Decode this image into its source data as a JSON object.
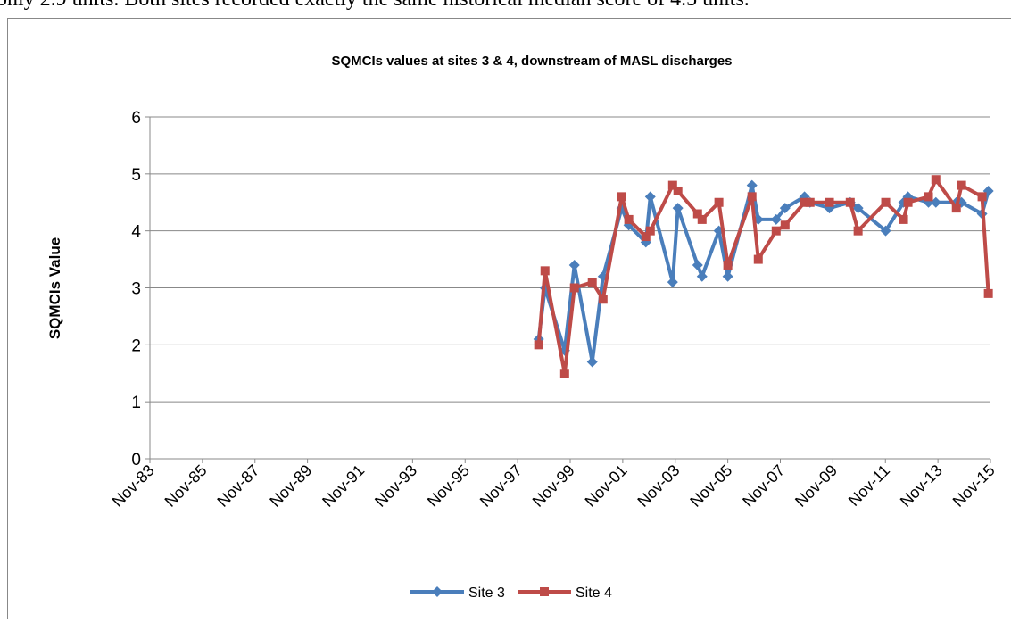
{
  "text_above": "only 2.9 units. Both sites recorded exactly the same historical median score of 4.5 units.",
  "chart_data": {
    "type": "line",
    "title": "SQMCIs values at sites 3 & 4, downstream of MASL discharges",
    "y_label": "SQMCIs Value",
    "x": [
      1998.63,
      1998.87,
      1999.62,
      1999.99,
      2000.67,
      2001.08,
      2001.79,
      2002.06,
      2002.71,
      2002.88,
      2003.73,
      2003.93,
      2004.68,
      2004.85,
      2005.49,
      2005.83,
      2006.75,
      2006.99,
      2007.67,
      2008.01,
      2008.75,
      2008.96,
      2009.7,
      2010.49,
      2010.79,
      2011.84,
      2012.52,
      2012.69,
      2013.47,
      2013.75,
      2014.53,
      2014.73,
      2015.51,
      2015.75
    ],
    "series": [
      {
        "name": "Site 3",
        "color": "#4a7ebb",
        "marker": "diamond",
        "values": [
          2.1,
          3.0,
          1.9,
          3.4,
          1.7,
          3.2,
          4.4,
          4.1,
          3.8,
          4.6,
          3.1,
          4.4,
          3.4,
          3.2,
          4.0,
          3.2,
          4.8,
          4.2,
          4.2,
          4.4,
          4.6,
          4.5,
          4.4,
          4.5,
          4.4,
          4.0,
          4.5,
          4.6,
          4.5,
          4.5,
          4.5,
          4.5,
          4.3,
          4.7
        ]
      },
      {
        "name": "Site 4",
        "color": "#be4b48",
        "marker": "square",
        "values": [
          2.0,
          3.3,
          1.5,
          3.0,
          3.1,
          2.8,
          4.6,
          4.2,
          3.9,
          4.0,
          4.8,
          4.7,
          4.3,
          4.2,
          4.5,
          3.4,
          4.6,
          3.5,
          4.0,
          4.1,
          4.5,
          4.5,
          4.5,
          4.5,
          4.0,
          4.5,
          4.2,
          4.5,
          4.6,
          4.9,
          4.4,
          4.8,
          4.6,
          2.9
        ]
      }
    ],
    "xlim": [
      1983.83,
      2015.83
    ],
    "xticks": [
      {
        "value": 1983.83,
        "label": "Nov-83"
      },
      {
        "value": 1985.83,
        "label": "Nov-85"
      },
      {
        "value": 1987.83,
        "label": "Nov-87"
      },
      {
        "value": 1989.83,
        "label": "Nov-89"
      },
      {
        "value": 1991.83,
        "label": "Nov-91"
      },
      {
        "value": 1993.83,
        "label": "Nov-93"
      },
      {
        "value": 1995.83,
        "label": "Nov-95"
      },
      {
        "value": 1997.83,
        "label": "Nov-97"
      },
      {
        "value": 1999.83,
        "label": "Nov-99"
      },
      {
        "value": 2001.83,
        "label": "Nov-01"
      },
      {
        "value": 2003.83,
        "label": "Nov-03"
      },
      {
        "value": 2005.83,
        "label": "Nov-05"
      },
      {
        "value": 2007.83,
        "label": "Nov-07"
      },
      {
        "value": 2009.83,
        "label": "Nov-09"
      },
      {
        "value": 2011.83,
        "label": "Nov-11"
      },
      {
        "value": 2013.83,
        "label": "Nov-13"
      },
      {
        "value": 2015.83,
        "label": "Nov-15"
      }
    ],
    "ylim": [
      0,
      6
    ],
    "yticks": [
      0,
      1,
      2,
      3,
      4,
      5,
      6
    ],
    "grid": true,
    "legend": "bottom"
  }
}
